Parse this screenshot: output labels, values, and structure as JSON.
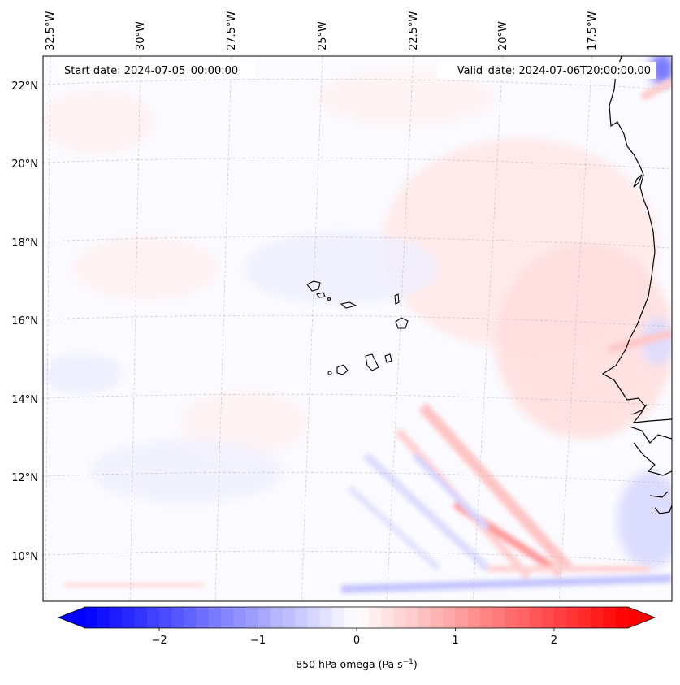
{
  "map": {
    "start_label": "Start date: 2024-07-05_00:00:00",
    "valid_label": "Valid_date: 2024-07-06T20:00:00.00",
    "lon_labels": [
      "32.5°W",
      "30°W",
      "27.5°W",
      "25°W",
      "22.5°W",
      "20°W",
      "17.5°W"
    ],
    "lat_labels": [
      "22°N",
      "20°N",
      "18°N",
      "16°N",
      "14°N",
      "12°N",
      "10°N"
    ]
  },
  "colorbar": {
    "label": "850 hPa omega (Pa s",
    "label_sup": "−1",
    "label_close": ")",
    "ticks": [
      "−2",
      "−1",
      "0",
      "1",
      "2"
    ],
    "min": -2.75,
    "max": 2.75,
    "tick_values": [
      -2,
      -1,
      0,
      1,
      2
    ],
    "neg_color": "#0000ff",
    "pos_color": "#ff0000"
  }
}
